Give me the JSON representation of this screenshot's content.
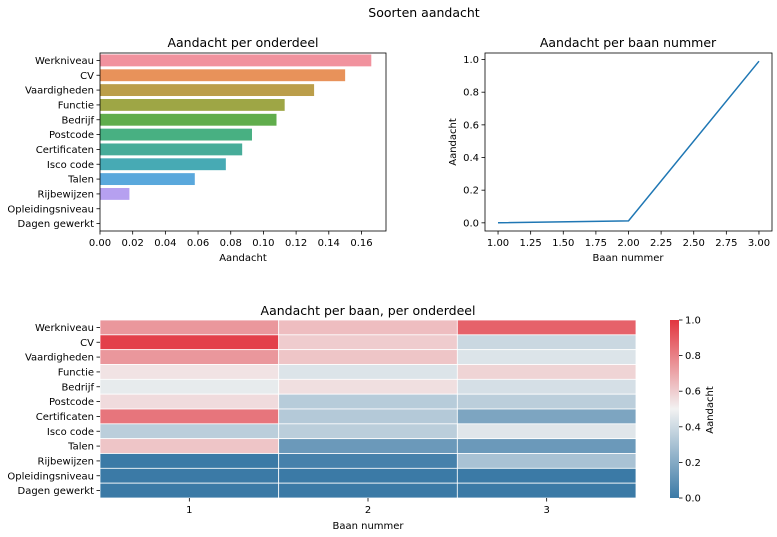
{
  "figure_title": "Soorten aandacht",
  "chart_data": [
    {
      "type": "bar",
      "orientation": "horizontal",
      "title": "Aandacht per onderdeel",
      "xlabel": "Aandacht",
      "ylabel": "",
      "xlim": [
        0,
        0.175
      ],
      "xticks": [
        "0.00",
        "0.02",
        "0.04",
        "0.06",
        "0.08",
        "0.10",
        "0.12",
        "0.14",
        "0.16"
      ],
      "categories": [
        "Werkniveau",
        "CV",
        "Vaardigheden",
        "Functie",
        "Bedrijf",
        "Postcode",
        "Certificaten",
        "Isco code",
        "Talen",
        "Rijbewijzen",
        "Opleidingsniveau",
        "Dagen gewerkt"
      ],
      "values": [
        0.166,
        0.15,
        0.131,
        0.113,
        0.108,
        0.093,
        0.087,
        0.077,
        0.058,
        0.018,
        0.0,
        0.0
      ],
      "colors": [
        "#f1929e",
        "#e8925a",
        "#bb9e4a",
        "#9ea645",
        "#60ad4c",
        "#48b082",
        "#47ac99",
        "#47aab4",
        "#5aa8dc",
        "#b6a0f0",
        "#e88ae0",
        "#f08cbe"
      ]
    },
    {
      "type": "line",
      "title": "Aandacht per baan nummer",
      "xlabel": "Baan nummer",
      "ylabel": "Aandacht",
      "x": [
        1.0,
        2.0,
        3.0
      ],
      "y": [
        0.0,
        0.012,
        0.99
      ],
      "xlim": [
        0.9,
        3.1
      ],
      "ylim": [
        -0.05,
        1.04
      ],
      "xticks": [
        "1.00",
        "1.25",
        "1.50",
        "1.75",
        "2.00",
        "2.25",
        "2.50",
        "2.75",
        "3.00"
      ],
      "yticks": [
        "0.0",
        "0.2",
        "0.4",
        "0.6",
        "0.8",
        "1.0"
      ],
      "color": "#1f77b4"
    },
    {
      "type": "heatmap",
      "title": "Aandacht per baan, per onderdeel",
      "xlabel": "Baan nummer",
      "ylabel": "",
      "x": [
        "1",
        "2",
        "3"
      ],
      "y": [
        "Werkniveau",
        "CV",
        "Vaardigheden",
        "Functie",
        "Bedrijf",
        "Postcode",
        "Certificaten",
        "Isco code",
        "Talen",
        "Rijbewijzen",
        "Opleidingsniveau",
        "Dagen gewerkt"
      ],
      "values": [
        [
          0.74,
          0.64,
          0.88
        ],
        [
          0.97,
          0.6,
          0.39
        ],
        [
          0.74,
          0.62,
          0.44
        ],
        [
          0.54,
          0.44,
          0.58
        ],
        [
          0.47,
          0.55,
          0.42
        ],
        [
          0.56,
          0.34,
          0.35
        ],
        [
          0.83,
          0.33,
          0.18
        ],
        [
          0.35,
          0.35,
          0.45
        ],
        [
          0.62,
          0.13,
          0.13
        ],
        [
          0.0,
          0.03,
          0.3
        ],
        [
          0.0,
          0.0,
          0.0
        ],
        [
          0.0,
          0.0,
          0.0
        ]
      ],
      "colorbar": {
        "label": "Aandacht",
        "range": [
          0,
          1
        ],
        "ticks": [
          "0.0",
          "0.2",
          "0.4",
          "0.6",
          "0.8",
          "1.0"
        ],
        "colormap": [
          "#3b7aa6",
          "#f2f2f2",
          "#e2353f"
        ]
      }
    }
  ]
}
